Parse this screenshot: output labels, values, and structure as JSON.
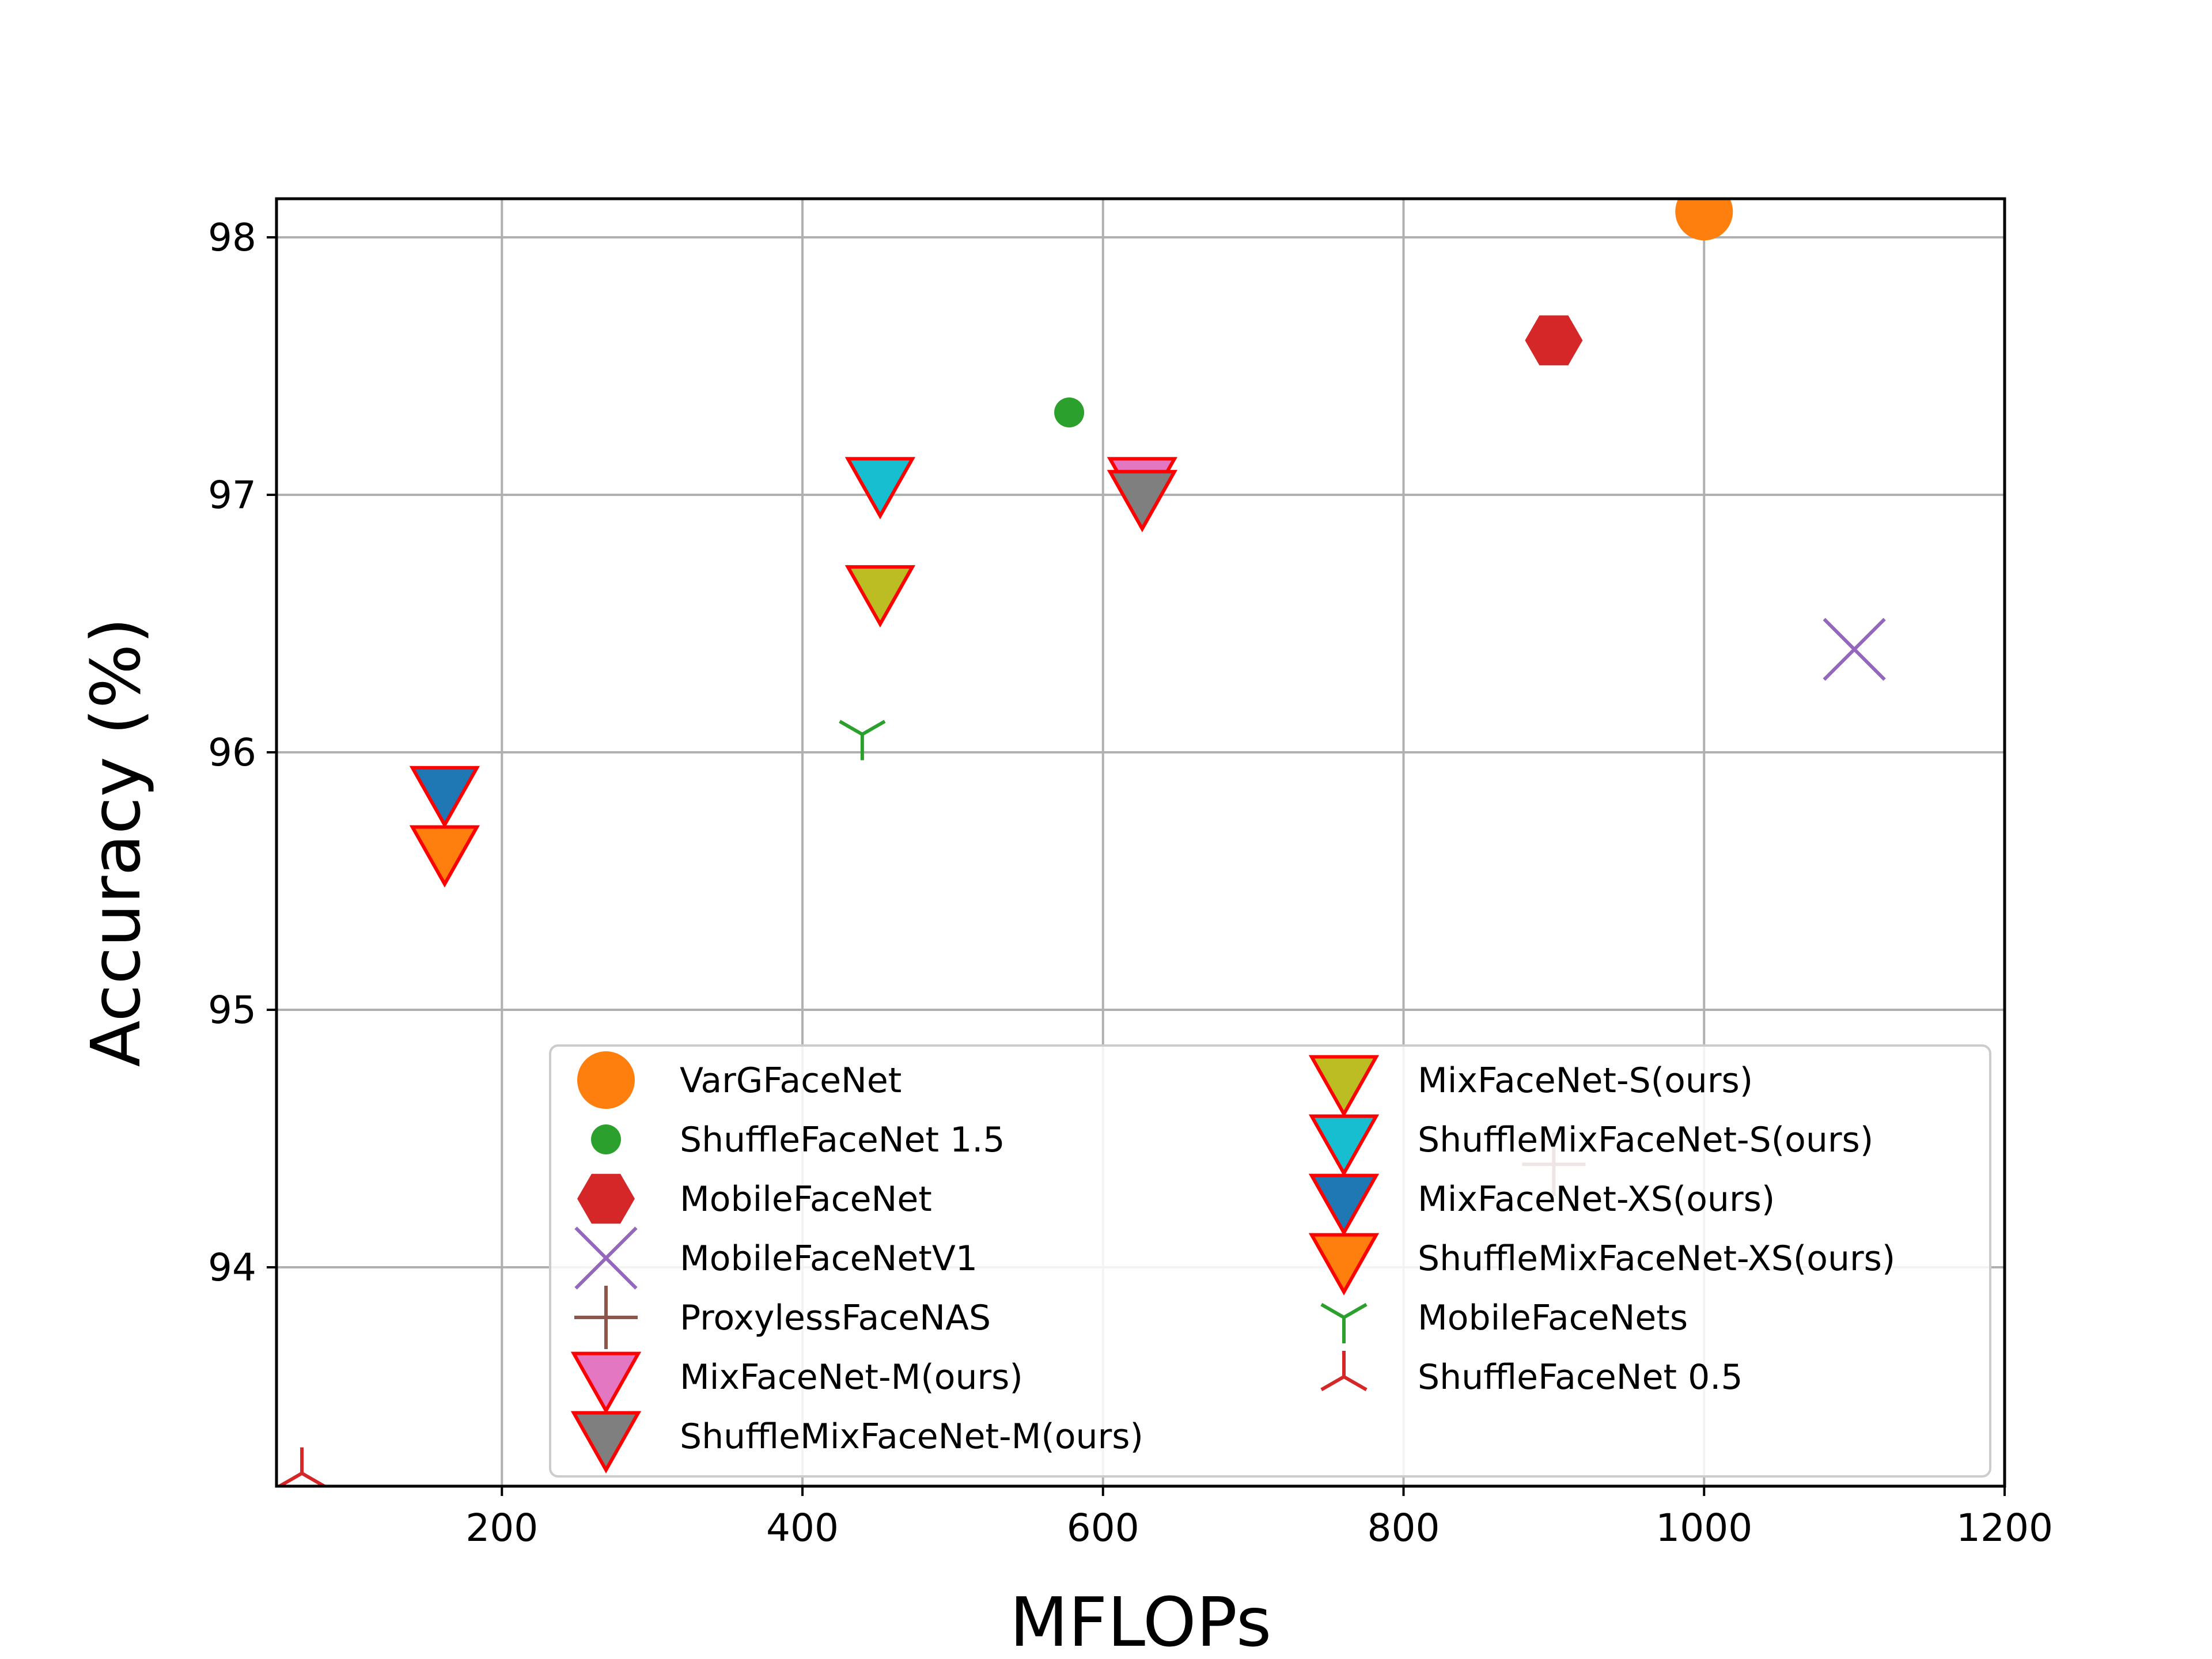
{
  "chart_data": {
    "type": "scatter",
    "xlabel": "MFLOPs",
    "ylabel": "Accuracy (%)",
    "xlim": [
      50,
      1200
    ],
    "ylim": [
      93.15,
      98.15
    ],
    "x_ticks": [
      200,
      400,
      600,
      800,
      1000,
      1200
    ],
    "x_tick_labels": [
      "200",
      "400",
      "600",
      "800",
      "1000",
      "1200"
    ],
    "y_ticks": [
      94,
      95,
      96,
      97,
      98
    ],
    "y_tick_labels": [
      "94",
      "95",
      "96",
      "97",
      "98"
    ],
    "grid": true,
    "legend_position": "lower-right",
    "legend_columns": 2,
    "series": [
      {
        "name": "VarGFaceNet",
        "marker": "circle",
        "color": "#ff7f0e",
        "edge": "#ff7f0e",
        "size": "large",
        "x": 1000,
        "y": 98.1
      },
      {
        "name": "ShuffleFaceNet 1.5",
        "marker": "circle",
        "color": "#2ca02c",
        "edge": "#2ca02c",
        "size": "small",
        "x": 577.5,
        "y": 97.32
      },
      {
        "name": "MobileFaceNet",
        "marker": "hexagon",
        "color": "#d62728",
        "edge": "#d62728",
        "size": "large",
        "x": 900,
        "y": 97.6
      },
      {
        "name": "MobileFaceNetV1",
        "marker": "x",
        "color": "#9467bd",
        "edge": "#9467bd",
        "size": "large",
        "x": 1100,
        "y": 96.4
      },
      {
        "name": "ProxylessFaceNAS",
        "marker": "plus",
        "color": "#8c564b",
        "edge": "#8c564b",
        "size": "large",
        "x": 900,
        "y": 94.4
      },
      {
        "name": "MixFaceNet-M(ours)",
        "marker": "triangle-down",
        "color": "#e377c2",
        "edge": "#ff0000",
        "size": "large",
        "x": 626.1,
        "y": 97.05
      },
      {
        "name": "ShuffleMixFaceNet-M(ours)",
        "marker": "triangle-down",
        "color": "#7f7f7f",
        "edge": "#ff0000",
        "size": "large",
        "x": 626.1,
        "y": 97.0
      },
      {
        "name": "MixFaceNet-S(ours)",
        "marker": "triangle-down",
        "color": "#bcbd22",
        "edge": "#ff0000",
        "size": "large",
        "x": 451.7,
        "y": 96.63
      },
      {
        "name": "ShuffleMixFaceNet-S(ours)",
        "marker": "triangle-down",
        "color": "#17becf",
        "edge": "#ff0000",
        "size": "large",
        "x": 451.7,
        "y": 97.05
      },
      {
        "name": "MixFaceNet-XS(ours)",
        "marker": "triangle-down",
        "color": "#1f77b4",
        "edge": "#ff0000",
        "size": "large",
        "x": 161.9,
        "y": 95.85
      },
      {
        "name": "ShuffleMixFaceNet-XS(ours)",
        "marker": "triangle-down",
        "color": "#ff7f0e",
        "edge": "#ff0000",
        "size": "large",
        "x": 161.9,
        "y": 95.62
      },
      {
        "name": "MobileFaceNets",
        "marker": "tri-down",
        "color": "#2ca02c",
        "edge": "#2ca02c",
        "size": "large",
        "x": 439.8,
        "y": 96.07
      },
      {
        "name": "ShuffleFaceNet 0.5",
        "marker": "tri-up",
        "color": "#d62728",
        "edge": "#d62728",
        "size": "large",
        "x": 66.9,
        "y": 93.2
      }
    ]
  }
}
